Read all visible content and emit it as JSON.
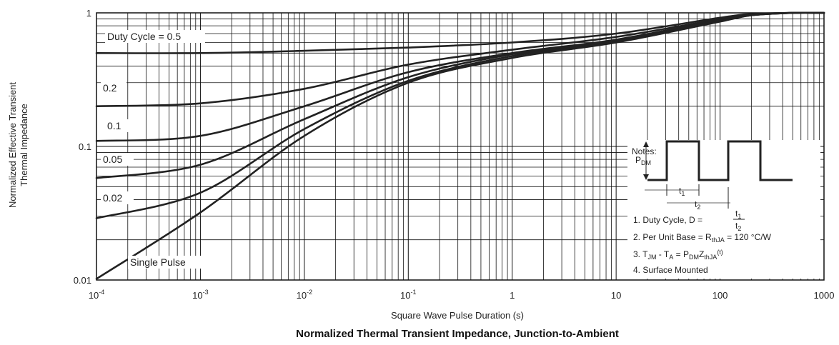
{
  "chart_data": {
    "type": "line",
    "title": "Normalized Thermal Transient Impedance, Junction-to-Ambient",
    "xlabel": "Square Wave Pulse Duration (s)",
    "ylabel_line1": "Normalized Effective Transient",
    "ylabel_line2": "Thermal Impedance",
    "x_scale": "log",
    "y_scale": "log",
    "xlim": [
      0.0001,
      1000
    ],
    "ylim": [
      0.01,
      1
    ],
    "grid": true,
    "x_ticks": [
      {
        "v": 0.0001,
        "base": "10",
        "exp": "-4"
      },
      {
        "v": 0.001,
        "base": "10",
        "exp": "-3"
      },
      {
        "v": 0.01,
        "base": "10",
        "exp": "-2"
      },
      {
        "v": 0.1,
        "base": "10",
        "exp": "-1"
      },
      {
        "v": 1,
        "base": "1",
        "exp": ""
      },
      {
        "v": 10,
        "base": "10",
        "exp": ""
      },
      {
        "v": 100,
        "base": "100",
        "exp": ""
      },
      {
        "v": 1000,
        "base": "1000",
        "exp": ""
      }
    ],
    "y_ticks": [
      {
        "v": 1,
        "label": "1"
      },
      {
        "v": 0.1,
        "label": "0.1"
      },
      {
        "v": 0.01,
        "label": "0.01"
      }
    ],
    "series": [
      {
        "name": "Duty Cycle = 0.5",
        "x": [
          0.0001,
          0.001,
          0.01,
          0.1,
          1,
          10,
          100,
          200,
          500,
          1000
        ],
        "y": [
          0.5,
          0.5,
          0.52,
          0.55,
          0.6,
          0.7,
          0.92,
          0.98,
          1.0,
          1.0
        ]
      },
      {
        "name": "0.2",
        "x": [
          0.0001,
          0.001,
          0.01,
          0.1,
          1,
          10,
          100,
          200,
          500,
          1000
        ],
        "y": [
          0.2,
          0.21,
          0.27,
          0.41,
          0.53,
          0.66,
          0.9,
          0.97,
          1.0,
          1.0
        ]
      },
      {
        "name": "0.1",
        "x": [
          0.0001,
          0.001,
          0.01,
          0.1,
          1,
          10,
          100,
          200,
          500,
          1000
        ],
        "y": [
          0.11,
          0.12,
          0.2,
          0.36,
          0.5,
          0.63,
          0.89,
          0.97,
          1.0,
          1.0
        ]
      },
      {
        "name": "0.05",
        "x": [
          0.0001,
          0.001,
          0.01,
          0.1,
          1,
          10,
          100,
          200,
          500,
          1000
        ],
        "y": [
          0.058,
          0.073,
          0.16,
          0.33,
          0.49,
          0.62,
          0.88,
          0.96,
          1.0,
          1.0
        ]
      },
      {
        "name": "0.02",
        "x": [
          0.0001,
          0.001,
          0.01,
          0.1,
          1,
          10,
          100,
          200,
          500,
          1000
        ],
        "y": [
          0.029,
          0.045,
          0.135,
          0.31,
          0.475,
          0.61,
          0.87,
          0.96,
          1.0,
          1.0
        ]
      },
      {
        "name": "Single Pulse",
        "x": [
          0.0001,
          0.001,
          0.01,
          0.1,
          1,
          10,
          100,
          200,
          500,
          1000
        ],
        "y": [
          0.0102,
          0.032,
          0.12,
          0.3,
          0.46,
          0.6,
          0.86,
          0.96,
          1.0,
          1.0
        ]
      }
    ],
    "curve_labels": [
      {
        "text": "Duty Cycle = 0.5"
      },
      {
        "text": "0.2"
      },
      {
        "text": "0.1"
      },
      {
        "text": "0.05"
      },
      {
        "text": "0.02"
      },
      {
        "text": "Single Pulse"
      }
    ],
    "notes": {
      "heading": "Notes:",
      "pdm_main": "P",
      "pdm_sub": "DM",
      "t1_main": "t",
      "t1_sub": "1",
      "t2_main": "t",
      "t2_sub": "2",
      "line1_prefix": "1. Duty Cycle, D = ",
      "line2_prefix": "2. Per Unit Base = R",
      "line2_sub": "thJA",
      "line2_suffix": " = 120 °C/W",
      "line3_a": "3. T",
      "line3_a_sub": "JM",
      "line3_b": " - T",
      "line3_b_sub": "A",
      "line3_c": " = P",
      "line3_c_sub": "DM",
      "line3_d": "Z",
      "line3_d_sub": "thJA",
      "line3_e": "(t)",
      "line4": "4. Surface Mounted"
    }
  }
}
